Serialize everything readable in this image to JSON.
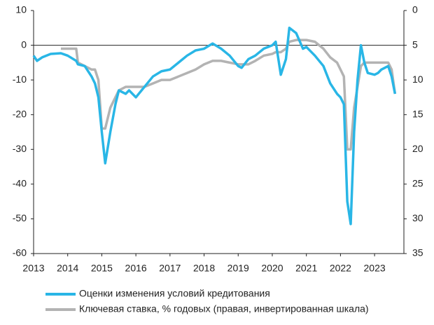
{
  "chart_data": {
    "type": "line",
    "x": [
      2013.0,
      2013.1,
      2013.25,
      2013.5,
      2013.8,
      2014.0,
      2014.25,
      2014.3,
      2014.5,
      2014.7,
      2014.8,
      2014.9,
      2015.0,
      2015.1,
      2015.25,
      2015.4,
      2015.5,
      2015.7,
      2015.8,
      2016.0,
      2016.25,
      2016.5,
      2016.75,
      2017.0,
      2017.25,
      2017.5,
      2017.75,
      2018.0,
      2018.25,
      2018.5,
      2018.75,
      2019.0,
      2019.1,
      2019.3,
      2019.5,
      2019.75,
      2020.0,
      2020.1,
      2020.25,
      2020.4,
      2020.5,
      2020.7,
      2020.9,
      2021.0,
      2021.25,
      2021.5,
      2021.7,
      2021.9,
      2022.0,
      2022.1,
      2022.2,
      2022.3,
      2022.4,
      2022.5,
      2022.6,
      2022.7,
      2022.8,
      2023.0,
      2023.1,
      2023.2,
      2023.4,
      2023.5,
      2023.6
    ],
    "series": [
      {
        "name": "Оценки изменения условий кредитования",
        "color": "#29b6e6",
        "values": [
          -3,
          -4.5,
          -3.5,
          -2.5,
          -2.3,
          -3,
          -4.5,
          -5.5,
          -6,
          -9,
          -11,
          -15,
          -25,
          -34,
          -25,
          -17,
          -13,
          -14,
          -13,
          -15,
          -12,
          -9,
          -7.5,
          -7,
          -5,
          -3,
          -1.5,
          -1,
          0.5,
          -1,
          -3,
          -6,
          -6.5,
          -4,
          -3,
          -1,
          0,
          1,
          -8.5,
          -4,
          5,
          3.5,
          -1,
          -0.5,
          -3,
          -6,
          -11,
          -14,
          -15,
          -17,
          -45,
          -51.5,
          -25,
          -10,
          0,
          -5,
          -8,
          -8.5,
          -8,
          -7,
          -6,
          -9,
          -14
        ]
      },
      {
        "name": "Ключевая ставка, % годовых (правая, инвертированная шкала)",
        "color": "#b3b3b3",
        "axis": "y2",
        "values": [
          null,
          null,
          null,
          null,
          5.5,
          5.5,
          5.5,
          7.5,
          8,
          8.5,
          8.5,
          10,
          17,
          17,
          14,
          12.5,
          11.5,
          11,
          11,
          11,
          11,
          10.5,
          10,
          10,
          9.5,
          9,
          8.5,
          7.75,
          7.25,
          7.25,
          7.5,
          7.75,
          7.75,
          7.75,
          7.25,
          6.5,
          6.25,
          6,
          6,
          5.5,
          4.5,
          4.25,
          4.25,
          4.25,
          4.5,
          5.5,
          6.75,
          7.5,
          8.5,
          9.5,
          20,
          20,
          14,
          11,
          8,
          7.5,
          7.5,
          7.5,
          7.5,
          7.5,
          7.5,
          8.5,
          12
        ]
      }
    ],
    "xlim": [
      2013,
      2023.86
    ],
    "xticks": [
      2013,
      2014,
      2015,
      2016,
      2017,
      2018,
      2019,
      2020,
      2021,
      2022,
      2023
    ],
    "ylim": [
      -60,
      10
    ],
    "yticks": [
      -60,
      -50,
      -40,
      -30,
      -20,
      -10,
      0,
      10
    ],
    "y2lim": [
      35,
      0
    ],
    "y2ticks": [
      35,
      30,
      25,
      20,
      15,
      10,
      5,
      0
    ],
    "grid": false
  }
}
